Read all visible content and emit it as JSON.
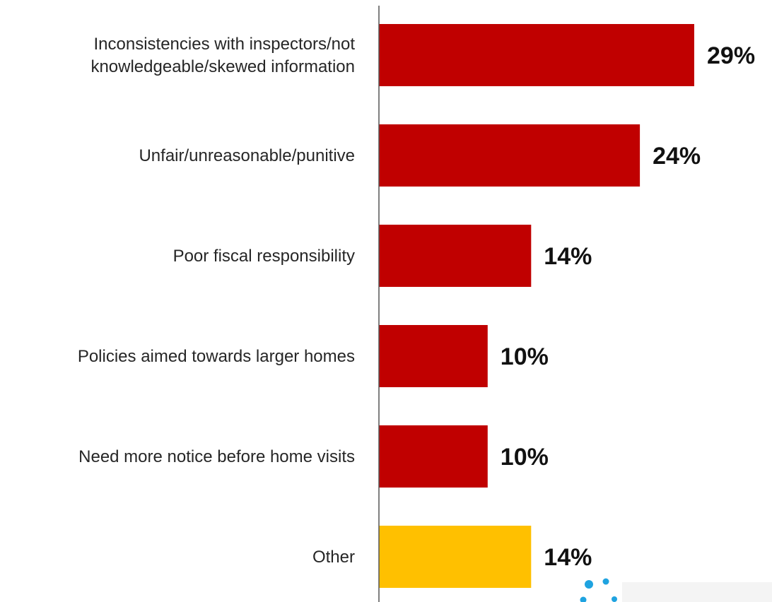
{
  "chart_data": {
    "type": "bar",
    "orientation": "horizontal",
    "categories": [
      [
        "Inconsistencies with inspectors/not",
        "knowledgeable/skewed information"
      ],
      [
        "Unfair/unreasonable/punitive"
      ],
      [
        "Poor fiscal responsibility"
      ],
      [
        "Policies aimed towards larger homes"
      ],
      [
        "Need more notice before home visits"
      ],
      [
        "Other"
      ]
    ],
    "values": [
      29,
      24,
      14,
      10,
      10,
      14
    ],
    "value_labels": [
      "29%",
      "24%",
      "14%",
      "10%",
      "10%",
      "14%"
    ],
    "bar_colors": [
      "#c00000",
      "#c00000",
      "#c00000",
      "#c00000",
      "#c00000",
      "#ffc000"
    ],
    "xlim": [
      0,
      30
    ],
    "grid": false,
    "legend": "none"
  },
  "decoration": {
    "logo_dot_color": "#1fa3e0"
  }
}
